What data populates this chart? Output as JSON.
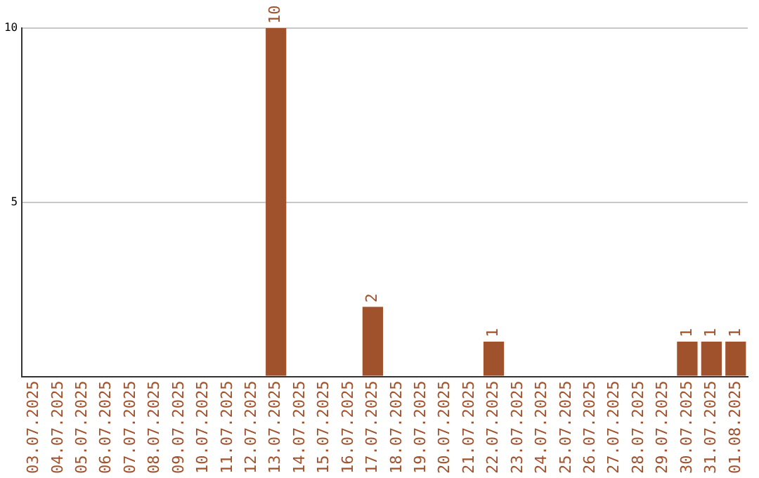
{
  "chart_data": {
    "type": "bar",
    "categories": [
      "03.07.2025",
      "04.07.2025",
      "05.07.2025",
      "06.07.2025",
      "07.07.2025",
      "08.07.2025",
      "09.07.2025",
      "10.07.2025",
      "11.07.2025",
      "12.07.2025",
      "13.07.2025",
      "14.07.2025",
      "15.07.2025",
      "16.07.2025",
      "17.07.2025",
      "18.07.2025",
      "19.07.2025",
      "20.07.2025",
      "21.07.2025",
      "22.07.2025",
      "23.07.2025",
      "24.07.2025",
      "25.07.2025",
      "26.07.2025",
      "27.07.2025",
      "28.07.2025",
      "29.07.2025",
      "30.07.2025",
      "31.07.2025",
      "01.08.2025"
    ],
    "values": [
      0,
      0,
      0,
      0,
      0,
      0,
      0,
      0,
      0,
      0,
      10,
      0,
      0,
      0,
      2,
      0,
      0,
      0,
      0,
      1,
      0,
      0,
      0,
      0,
      0,
      0,
      0,
      1,
      1,
      1
    ],
    "value_labels": [
      null,
      null,
      null,
      null,
      null,
      null,
      null,
      null,
      null,
      null,
      "10",
      null,
      null,
      null,
      "2",
      null,
      null,
      null,
      null,
      "1",
      null,
      null,
      null,
      null,
      null,
      null,
      null,
      "1",
      "1",
      "1"
    ],
    "color": "#a0522d",
    "ylim": [
      0,
      10
    ],
    "yticks": [
      {
        "value": 0,
        "label": null
      },
      5,
      10
    ],
    "grid": "y",
    "legend": false
  }
}
